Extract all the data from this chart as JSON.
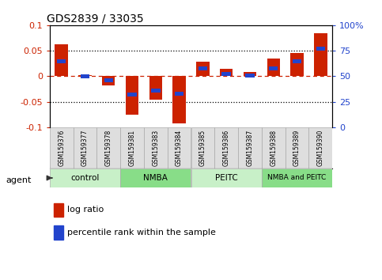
{
  "title": "GDS2839 / 33035",
  "samples": [
    "GSM159376",
    "GSM159377",
    "GSM159378",
    "GSM159381",
    "GSM159383",
    "GSM159384",
    "GSM159385",
    "GSM159386",
    "GSM159387",
    "GSM159388",
    "GSM159389",
    "GSM159390"
  ],
  "log_ratio": [
    0.062,
    0.002,
    -0.018,
    -0.075,
    -0.046,
    -0.092,
    0.028,
    0.014,
    0.008,
    0.035,
    0.045,
    0.085
  ],
  "percentile_rank": [
    65,
    50,
    46,
    32,
    36,
    33,
    58,
    52,
    51,
    58,
    65,
    77
  ],
  "groups": [
    {
      "label": "control",
      "start": 0,
      "end": 3,
      "color": "#c8f0c8"
    },
    {
      "label": "NMBA",
      "start": 3,
      "end": 6,
      "color": "#88dd88"
    },
    {
      "label": "PEITC",
      "start": 6,
      "end": 9,
      "color": "#c8f0c8"
    },
    {
      "label": "NMBA and PEITC",
      "start": 9,
      "end": 12,
      "color": "#88dd88"
    }
  ],
  "ylim": [
    -0.1,
    0.1
  ],
  "yticks_left": [
    -0.1,
    -0.05,
    0,
    0.05,
    0.1
  ],
  "yticks_right": [
    0,
    25,
    50,
    75,
    100
  ],
  "bar_color_red": "#cc2200",
  "bar_color_blue": "#2244cc",
  "legend_red": "log ratio",
  "legend_blue": "percentile rank within the sample",
  "bar_width": 0.55,
  "blue_bar_height": 0.008,
  "agent_label": "agent"
}
